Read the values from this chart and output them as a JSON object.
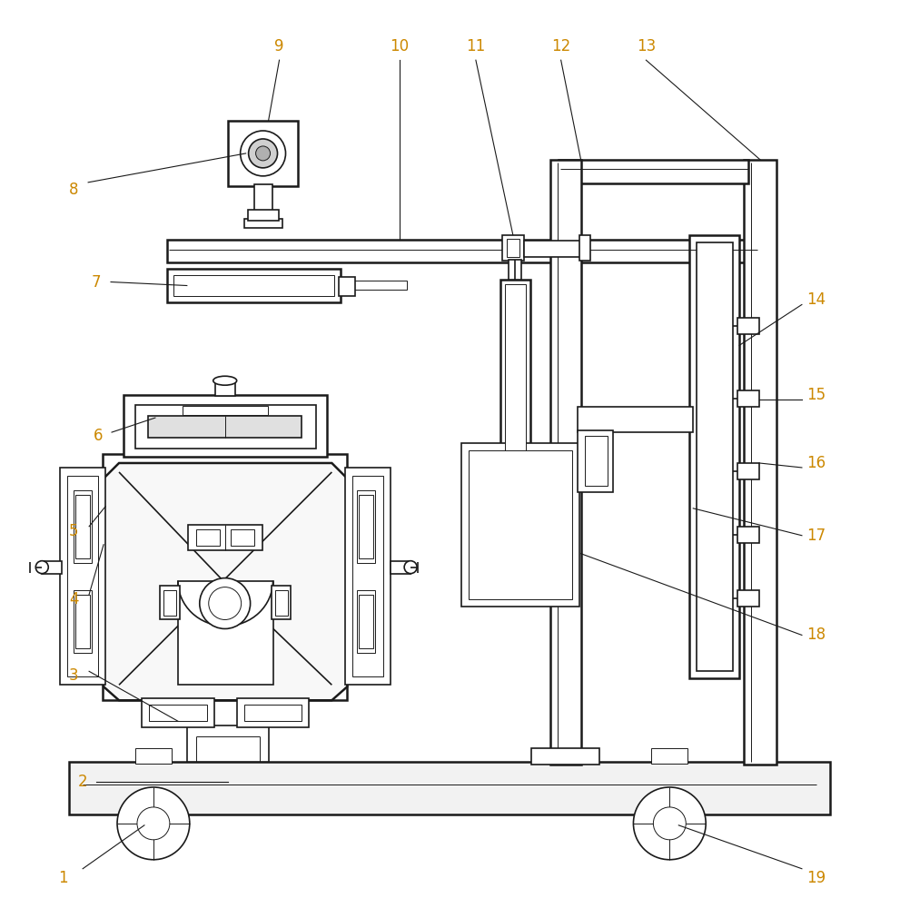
{
  "bg_color": "#ffffff",
  "line_color": "#1a1a1a",
  "number_color": "#cc8800",
  "fig_width": 9.91,
  "fig_height": 10.0,
  "font_size": 12
}
